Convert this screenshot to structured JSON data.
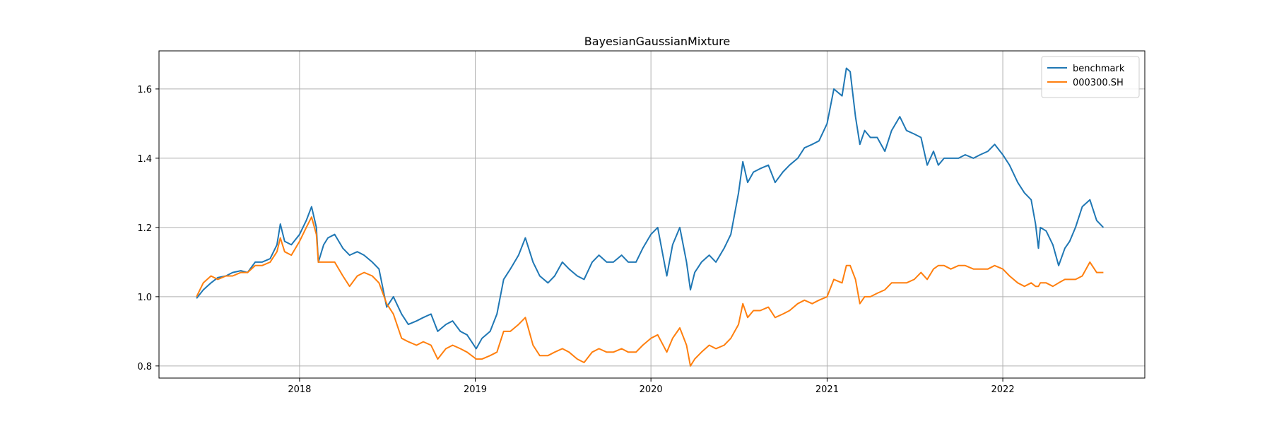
{
  "chart_data": {
    "type": "line",
    "title": "BayesianGaussianMixture",
    "xlabel": "",
    "ylabel": "",
    "xlim": [
      "2017-03-15",
      "2022-10-23"
    ],
    "ylim": [
      0.765,
      1.71
    ],
    "x_ticks": [
      {
        "value": "2018-01-01",
        "label": "2018"
      },
      {
        "value": "2019-01-01",
        "label": "2019"
      },
      {
        "value": "2020-01-01",
        "label": "2020"
      },
      {
        "value": "2021-01-01",
        "label": "2021"
      },
      {
        "value": "2022-01-01",
        "label": "2022"
      }
    ],
    "y_ticks": [
      {
        "value": 0.8,
        "label": "0.8"
      },
      {
        "value": 1.0,
        "label": "1.0"
      },
      {
        "value": 1.2,
        "label": "1.2"
      },
      {
        "value": 1.4,
        "label": "1.4"
      },
      {
        "value": 1.6,
        "label": "1.6"
      }
    ],
    "grid": true,
    "legend_position": "top-right",
    "series": [
      {
        "name": "benchmark",
        "color": "#1f77b4",
        "points": [
          [
            "2017-06-01",
            0.995
          ],
          [
            "2017-06-15",
            1.02
          ],
          [
            "2017-07-01",
            1.04
          ],
          [
            "2017-07-15",
            1.055
          ],
          [
            "2017-08-01",
            1.06
          ],
          [
            "2017-08-15",
            1.07
          ],
          [
            "2017-09-01",
            1.075
          ],
          [
            "2017-09-15",
            1.07
          ],
          [
            "2017-10-01",
            1.1
          ],
          [
            "2017-10-15",
            1.1
          ],
          [
            "2017-11-01",
            1.11
          ],
          [
            "2017-11-15",
            1.15
          ],
          [
            "2017-11-22",
            1.21
          ],
          [
            "2017-12-01",
            1.16
          ],
          [
            "2017-12-15",
            1.15
          ],
          [
            "2018-01-01",
            1.18
          ],
          [
            "2018-01-15",
            1.22
          ],
          [
            "2018-01-26",
            1.26
          ],
          [
            "2018-02-05",
            1.2
          ],
          [
            "2018-02-09",
            1.1
          ],
          [
            "2018-02-20",
            1.15
          ],
          [
            "2018-03-01",
            1.17
          ],
          [
            "2018-03-15",
            1.18
          ],
          [
            "2018-04-01",
            1.14
          ],
          [
            "2018-04-15",
            1.12
          ],
          [
            "2018-05-01",
            1.13
          ],
          [
            "2018-05-15",
            1.12
          ],
          [
            "2018-06-01",
            1.1
          ],
          [
            "2018-06-15",
            1.08
          ],
          [
            "2018-07-01",
            0.97
          ],
          [
            "2018-07-15",
            1.0
          ],
          [
            "2018-08-01",
            0.95
          ],
          [
            "2018-08-15",
            0.92
          ],
          [
            "2018-09-01",
            0.93
          ],
          [
            "2018-09-15",
            0.94
          ],
          [
            "2018-10-01",
            0.95
          ],
          [
            "2018-10-15",
            0.9
          ],
          [
            "2018-11-01",
            0.92
          ],
          [
            "2018-11-15",
            0.93
          ],
          [
            "2018-12-01",
            0.9
          ],
          [
            "2018-12-15",
            0.89
          ],
          [
            "2019-01-03",
            0.85
          ],
          [
            "2019-01-15",
            0.88
          ],
          [
            "2019-02-01",
            0.9
          ],
          [
            "2019-02-15",
            0.95
          ],
          [
            "2019-03-01",
            1.05
          ],
          [
            "2019-03-15",
            1.08
          ],
          [
            "2019-04-01",
            1.12
          ],
          [
            "2019-04-15",
            1.17
          ],
          [
            "2019-05-01",
            1.1
          ],
          [
            "2019-05-15",
            1.06
          ],
          [
            "2019-06-01",
            1.04
          ],
          [
            "2019-06-15",
            1.06
          ],
          [
            "2019-07-01",
            1.1
          ],
          [
            "2019-07-15",
            1.08
          ],
          [
            "2019-08-01",
            1.06
          ],
          [
            "2019-08-15",
            1.05
          ],
          [
            "2019-09-01",
            1.1
          ],
          [
            "2019-09-15",
            1.12
          ],
          [
            "2019-10-01",
            1.1
          ],
          [
            "2019-10-15",
            1.1
          ],
          [
            "2019-11-01",
            1.12
          ],
          [
            "2019-11-15",
            1.1
          ],
          [
            "2019-12-01",
            1.1
          ],
          [
            "2019-12-15",
            1.14
          ],
          [
            "2020-01-01",
            1.18
          ],
          [
            "2020-01-15",
            1.2
          ],
          [
            "2020-02-03",
            1.06
          ],
          [
            "2020-02-15",
            1.15
          ],
          [
            "2020-03-01",
            1.2
          ],
          [
            "2020-03-15",
            1.1
          ],
          [
            "2020-03-23",
            1.02
          ],
          [
            "2020-04-01",
            1.07
          ],
          [
            "2020-04-15",
            1.1
          ],
          [
            "2020-05-01",
            1.12
          ],
          [
            "2020-05-15",
            1.1
          ],
          [
            "2020-06-01",
            1.14
          ],
          [
            "2020-06-15",
            1.18
          ],
          [
            "2020-07-01",
            1.3
          ],
          [
            "2020-07-10",
            1.39
          ],
          [
            "2020-07-20",
            1.33
          ],
          [
            "2020-08-01",
            1.36
          ],
          [
            "2020-08-15",
            1.37
          ],
          [
            "2020-09-01",
            1.38
          ],
          [
            "2020-09-15",
            1.33
          ],
          [
            "2020-10-01",
            1.36
          ],
          [
            "2020-10-15",
            1.38
          ],
          [
            "2020-11-01",
            1.4
          ],
          [
            "2020-11-15",
            1.43
          ],
          [
            "2020-12-01",
            1.44
          ],
          [
            "2020-12-15",
            1.45
          ],
          [
            "2021-01-01",
            1.5
          ],
          [
            "2021-01-15",
            1.6
          ],
          [
            "2021-02-01",
            1.58
          ],
          [
            "2021-02-10",
            1.66
          ],
          [
            "2021-02-18",
            1.65
          ],
          [
            "2021-03-01",
            1.52
          ],
          [
            "2021-03-10",
            1.44
          ],
          [
            "2021-03-20",
            1.48
          ],
          [
            "2021-04-01",
            1.46
          ],
          [
            "2021-04-15",
            1.46
          ],
          [
            "2021-05-01",
            1.42
          ],
          [
            "2021-05-15",
            1.48
          ],
          [
            "2021-06-01",
            1.52
          ],
          [
            "2021-06-15",
            1.48
          ],
          [
            "2021-07-01",
            1.47
          ],
          [
            "2021-07-15",
            1.46
          ],
          [
            "2021-07-28",
            1.38
          ],
          [
            "2021-08-10",
            1.42
          ],
          [
            "2021-08-20",
            1.38
          ],
          [
            "2021-09-01",
            1.4
          ],
          [
            "2021-09-15",
            1.4
          ],
          [
            "2021-10-01",
            1.4
          ],
          [
            "2021-10-15",
            1.41
          ],
          [
            "2021-11-01",
            1.4
          ],
          [
            "2021-11-15",
            1.41
          ],
          [
            "2021-12-01",
            1.42
          ],
          [
            "2021-12-15",
            1.44
          ],
          [
            "2022-01-01",
            1.41
          ],
          [
            "2022-01-15",
            1.38
          ],
          [
            "2022-02-01",
            1.33
          ],
          [
            "2022-02-15",
            1.3
          ],
          [
            "2022-03-01",
            1.28
          ],
          [
            "2022-03-10",
            1.21
          ],
          [
            "2022-03-16",
            1.14
          ],
          [
            "2022-03-20",
            1.2
          ],
          [
            "2022-04-01",
            1.19
          ],
          [
            "2022-04-15",
            1.15
          ],
          [
            "2022-04-27",
            1.09
          ],
          [
            "2022-05-10",
            1.14
          ],
          [
            "2022-05-20",
            1.16
          ],
          [
            "2022-06-01",
            1.2
          ],
          [
            "2022-06-15",
            1.26
          ],
          [
            "2022-07-01",
            1.28
          ],
          [
            "2022-07-15",
            1.22
          ],
          [
            "2022-07-29",
            1.2
          ]
        ]
      },
      {
        "name": "000300.SH",
        "color": "#ff7f0e",
        "points": [
          [
            "2017-06-01",
            1.0
          ],
          [
            "2017-06-15",
            1.04
          ],
          [
            "2017-07-01",
            1.06
          ],
          [
            "2017-07-15",
            1.05
          ],
          [
            "2017-08-01",
            1.06
          ],
          [
            "2017-08-15",
            1.06
          ],
          [
            "2017-09-01",
            1.07
          ],
          [
            "2017-09-15",
            1.07
          ],
          [
            "2017-10-01",
            1.09
          ],
          [
            "2017-10-15",
            1.09
          ],
          [
            "2017-11-01",
            1.1
          ],
          [
            "2017-11-15",
            1.13
          ],
          [
            "2017-11-22",
            1.17
          ],
          [
            "2017-12-01",
            1.13
          ],
          [
            "2017-12-15",
            1.12
          ],
          [
            "2018-01-01",
            1.16
          ],
          [
            "2018-01-15",
            1.2
          ],
          [
            "2018-01-26",
            1.23
          ],
          [
            "2018-02-05",
            1.18
          ],
          [
            "2018-02-09",
            1.1
          ],
          [
            "2018-02-20",
            1.1
          ],
          [
            "2018-03-01",
            1.1
          ],
          [
            "2018-03-15",
            1.1
          ],
          [
            "2018-04-01",
            1.06
          ],
          [
            "2018-04-15",
            1.03
          ],
          [
            "2018-05-01",
            1.06
          ],
          [
            "2018-05-15",
            1.07
          ],
          [
            "2018-06-01",
            1.06
          ],
          [
            "2018-06-15",
            1.04
          ],
          [
            "2018-07-01",
            0.98
          ],
          [
            "2018-07-15",
            0.95
          ],
          [
            "2018-08-01",
            0.88
          ],
          [
            "2018-08-15",
            0.87
          ],
          [
            "2018-09-01",
            0.86
          ],
          [
            "2018-09-15",
            0.87
          ],
          [
            "2018-10-01",
            0.86
          ],
          [
            "2018-10-15",
            0.82
          ],
          [
            "2018-11-01",
            0.85
          ],
          [
            "2018-11-15",
            0.86
          ],
          [
            "2018-12-01",
            0.85
          ],
          [
            "2018-12-15",
            0.84
          ],
          [
            "2019-01-03",
            0.82
          ],
          [
            "2019-01-15",
            0.82
          ],
          [
            "2019-02-01",
            0.83
          ],
          [
            "2019-02-15",
            0.84
          ],
          [
            "2019-03-01",
            0.9
          ],
          [
            "2019-03-15",
            0.9
          ],
          [
            "2019-04-01",
            0.92
          ],
          [
            "2019-04-15",
            0.94
          ],
          [
            "2019-05-01",
            0.86
          ],
          [
            "2019-05-15",
            0.83
          ],
          [
            "2019-06-01",
            0.83
          ],
          [
            "2019-06-15",
            0.84
          ],
          [
            "2019-07-01",
            0.85
          ],
          [
            "2019-07-15",
            0.84
          ],
          [
            "2019-08-01",
            0.82
          ],
          [
            "2019-08-15",
            0.81
          ],
          [
            "2019-09-01",
            0.84
          ],
          [
            "2019-09-15",
            0.85
          ],
          [
            "2019-10-01",
            0.84
          ],
          [
            "2019-10-15",
            0.84
          ],
          [
            "2019-11-01",
            0.85
          ],
          [
            "2019-11-15",
            0.84
          ],
          [
            "2019-12-01",
            0.84
          ],
          [
            "2019-12-15",
            0.86
          ],
          [
            "2020-01-01",
            0.88
          ],
          [
            "2020-01-15",
            0.89
          ],
          [
            "2020-02-03",
            0.84
          ],
          [
            "2020-02-15",
            0.88
          ],
          [
            "2020-03-01",
            0.91
          ],
          [
            "2020-03-15",
            0.86
          ],
          [
            "2020-03-23",
            0.8
          ],
          [
            "2020-04-01",
            0.82
          ],
          [
            "2020-04-15",
            0.84
          ],
          [
            "2020-05-01",
            0.86
          ],
          [
            "2020-05-15",
            0.85
          ],
          [
            "2020-06-01",
            0.86
          ],
          [
            "2020-06-15",
            0.88
          ],
          [
            "2020-07-01",
            0.92
          ],
          [
            "2020-07-10",
            0.98
          ],
          [
            "2020-07-20",
            0.94
          ],
          [
            "2020-08-01",
            0.96
          ],
          [
            "2020-08-15",
            0.96
          ],
          [
            "2020-09-01",
            0.97
          ],
          [
            "2020-09-15",
            0.94
          ],
          [
            "2020-10-01",
            0.95
          ],
          [
            "2020-10-15",
            0.96
          ],
          [
            "2020-11-01",
            0.98
          ],
          [
            "2020-11-15",
            0.99
          ],
          [
            "2020-12-01",
            0.98
          ],
          [
            "2020-12-15",
            0.99
          ],
          [
            "2021-01-01",
            1.0
          ],
          [
            "2021-01-15",
            1.05
          ],
          [
            "2021-02-01",
            1.04
          ],
          [
            "2021-02-10",
            1.09
          ],
          [
            "2021-02-18",
            1.09
          ],
          [
            "2021-03-01",
            1.05
          ],
          [
            "2021-03-10",
            0.98
          ],
          [
            "2021-03-20",
            1.0
          ],
          [
            "2021-04-01",
            1.0
          ],
          [
            "2021-04-15",
            1.01
          ],
          [
            "2021-05-01",
            1.02
          ],
          [
            "2021-05-15",
            1.04
          ],
          [
            "2021-06-01",
            1.04
          ],
          [
            "2021-06-15",
            1.04
          ],
          [
            "2021-07-01",
            1.05
          ],
          [
            "2021-07-15",
            1.07
          ],
          [
            "2021-07-28",
            1.05
          ],
          [
            "2021-08-10",
            1.08
          ],
          [
            "2021-08-20",
            1.09
          ],
          [
            "2021-09-01",
            1.09
          ],
          [
            "2021-09-15",
            1.08
          ],
          [
            "2021-10-01",
            1.09
          ],
          [
            "2021-10-15",
            1.09
          ],
          [
            "2021-11-01",
            1.08
          ],
          [
            "2021-11-15",
            1.08
          ],
          [
            "2021-12-01",
            1.08
          ],
          [
            "2021-12-15",
            1.09
          ],
          [
            "2022-01-01",
            1.08
          ],
          [
            "2022-01-15",
            1.06
          ],
          [
            "2022-02-01",
            1.04
          ],
          [
            "2022-02-15",
            1.03
          ],
          [
            "2022-03-01",
            1.04
          ],
          [
            "2022-03-10",
            1.03
          ],
          [
            "2022-03-16",
            1.03
          ],
          [
            "2022-03-20",
            1.04
          ],
          [
            "2022-04-01",
            1.04
          ],
          [
            "2022-04-15",
            1.03
          ],
          [
            "2022-04-27",
            1.04
          ],
          [
            "2022-05-10",
            1.05
          ],
          [
            "2022-05-20",
            1.05
          ],
          [
            "2022-06-01",
            1.05
          ],
          [
            "2022-06-15",
            1.06
          ],
          [
            "2022-07-01",
            1.1
          ],
          [
            "2022-07-15",
            1.07
          ],
          [
            "2022-07-29",
            1.07
          ]
        ]
      }
    ]
  }
}
